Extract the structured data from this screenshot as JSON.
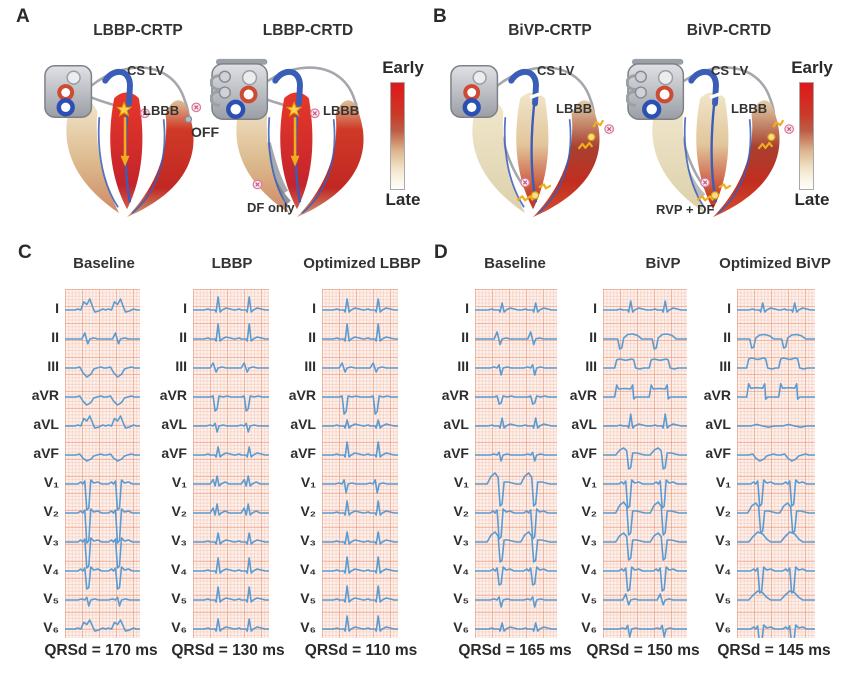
{
  "figure": {
    "panels": {
      "A": {
        "letter": "A",
        "hearts": [
          {
            "title": "LBBP-CRTP",
            "device": "CRTP",
            "style": "lbbp",
            "labels": {
              "cs_lv": "CS LV",
              "lbbb": "LBBB",
              "extra": "OFF"
            }
          },
          {
            "title": "LBBP-CRTD",
            "device": "CRTD",
            "style": "lbbp",
            "labels": {
              "lbbb": "LBBB",
              "extra": "DF only"
            }
          }
        ],
        "colorbar": {
          "top": "Early",
          "bottom": "Late"
        }
      },
      "B": {
        "letter": "B",
        "hearts": [
          {
            "title": "BiVP-CRTP",
            "device": "CRTP",
            "style": "bivp",
            "labels": {
              "cs_lv": "CS LV",
              "lbbb": "LBBB"
            }
          },
          {
            "title": "BiVP-CRTD",
            "device": "CRTD",
            "style": "bivp",
            "labels": {
              "cs_lv": "CS LV",
              "lbbb": "LBBB",
              "extra": "RVP + DF"
            }
          }
        ],
        "colorbar": {
          "top": "Early",
          "bottom": "Late"
        }
      },
      "C": {
        "letter": "C",
        "lead_labels": [
          "I",
          "II",
          "III",
          "aVR",
          "aVL",
          "aVF",
          "V₁",
          "V₂",
          "V₃",
          "V₄",
          "V₅",
          "V₆"
        ],
        "columns": [
          {
            "title": "Baseline",
            "qrsd_label": "QRSd = 170 ms",
            "qrsd_ms": 170,
            "waveforms": [
              [
                "wide_notch_pos",
                11
              ],
              [
                "biphasic",
                6
              ],
              [
                "neg_wide",
                9
              ],
              [
                "neg_wide",
                8
              ],
              [
                "wide_notch_pos",
                10
              ],
              [
                "neg_wide",
                6
              ],
              [
                "deep_qs",
                26
              ],
              [
                "deep_qs",
                30
              ],
              [
                "deep_qs",
                26
              ],
              [
                "deep_qs",
                18
              ],
              [
                "rs",
                6
              ],
              [
                "wide_notch_pos",
                9
              ]
            ]
          },
          {
            "title": "LBBP",
            "qrsd_label": "QRSd = 130 ms",
            "qrsd_ms": 130,
            "waveforms": [
              [
                "narrow_pos",
                13
              ],
              [
                "narrow_pos",
                15
              ],
              [
                "biphasic",
                5
              ],
              [
                "neg_narrow",
                14
              ],
              [
                "rs",
                6
              ],
              [
                "narrow_pos",
                8
              ],
              [
                "rsr_notch",
                8
              ],
              [
                "rsr_notch",
                9
              ],
              [
                "narrow_pos",
                9
              ],
              [
                "narrow_pos",
                13
              ],
              [
                "narrow_pos",
                13
              ],
              [
                "narrow_pos",
                10
              ]
            ]
          },
          {
            "title": "Optimized LBBP",
            "qrsd_label": "QRSd = 110 ms",
            "qrsd_ms": 110,
            "waveforms": [
              [
                "narrow_pos",
                11
              ],
              [
                "narrow_pos",
                15
              ],
              [
                "biphasic",
                5
              ],
              [
                "neg_narrow",
                17
              ],
              [
                "narrow_pos",
                6
              ],
              [
                "narrow_pos",
                13
              ],
              [
                "rs",
                9
              ],
              [
                "narrow_pos",
                12
              ],
              [
                "narrow_pos",
                10
              ],
              [
                "narrow_pos",
                14
              ],
              [
                "narrow_pos",
                14
              ],
              [
                "narrow_pos",
                13
              ]
            ]
          }
        ]
      },
      "D": {
        "letter": "D",
        "lead_labels": [
          "I",
          "II",
          "III",
          "aVR",
          "aVL",
          "aVF",
          "V₁",
          "V₂",
          "V₃",
          "V₄",
          "V₅",
          "V₆"
        ],
        "columns": [
          {
            "title": "Baseline",
            "qrsd_label": "QRSd = 165 ms",
            "qrsd_ms": 165,
            "waveforms": [
              [
                "narrow_pos",
                7
              ],
              [
                "biphasic",
                7
              ],
              [
                "rs",
                7
              ],
              [
                "neg_narrow",
                7
              ],
              [
                "narrow_pos",
                8
              ],
              [
                "rs",
                6
              ],
              [
                "hump_deep_s",
                22
              ],
              [
                "deep_qs",
                26
              ],
              [
                "hump_deep_s",
                20
              ],
              [
                "deep_qs",
                14
              ],
              [
                "rs",
                7
              ],
              [
                "narrow_pos",
                6
              ]
            ]
          },
          {
            "title": "BiVP",
            "qrsd_label": "QRSd = 150 ms",
            "qrsd_ms": 150,
            "waveforms": [
              [
                "narrow_pos",
                9
              ],
              [
                "q_dome",
                10
              ],
              [
                "plateau_pos",
                9
              ],
              [
                "plateau_spike",
                10
              ],
              [
                "narrow_pos",
                12
              ],
              [
                "hump_deep_s",
                14
              ],
              [
                "deep_qs",
                24
              ],
              [
                "hump_deep_s",
                22
              ],
              [
                "hump_deep_s",
                18
              ],
              [
                "deep_qs",
                20
              ],
              [
                "biphasic",
                6
              ],
              [
                "rs",
                8
              ]
            ]
          },
          {
            "title": "Optimized BiVP",
            "qrsd_label": "QRSd = 145 ms",
            "qrsd_ms": 145,
            "waveforms": [
              [
                "narrow_pos",
                7
              ],
              [
                "q_dome",
                9
              ],
              [
                "plateau_pos",
                10
              ],
              [
                "plateau_spike",
                11
              ],
              [
                "flat",
                4
              ],
              [
                "neg_wide",
                6
              ],
              [
                "deep_qs",
                22
              ],
              [
                "hump_deep_s",
                20
              ],
              [
                "pos_hump",
                10
              ],
              [
                "deep_qs",
                22
              ],
              [
                "pos_hump",
                9
              ],
              [
                "deep_qs",
                16
              ]
            ]
          }
        ]
      }
    },
    "colors": {
      "trace_blue": "#5b9bd1",
      "grid_bg": "#fdf1ec",
      "early_red": "#e0181b",
      "late_cream": "#fefdfb",
      "lead_yellow": "#f0ad1f",
      "marker_pink": "#da7ba0",
      "device_gray": "#b9bcc2",
      "conduction_blue": "#3a5db8"
    }
  }
}
